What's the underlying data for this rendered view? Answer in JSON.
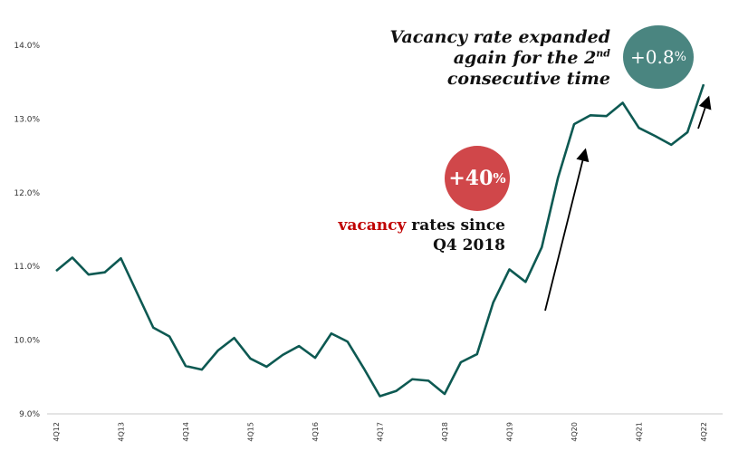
{
  "chart_data": {
    "type": "line",
    "title": "",
    "xlabel": "",
    "ylabel": "",
    "ylim": [
      9.0,
      14.0
    ],
    "yticks": [
      "9.0%",
      "10.0%",
      "11.0%",
      "12.0%",
      "13.0%",
      "14.0%"
    ],
    "xtick_labels": [
      "4Q12",
      "4Q13",
      "4Q14",
      "4Q15",
      "4Q16",
      "4Q17",
      "4Q18",
      "4Q19",
      "4Q20",
      "4Q21",
      "4Q22"
    ],
    "series": [
      {
        "name": "Vacancy rate",
        "color": "#0d5952",
        "values": [
          10.94,
          11.12,
          10.89,
          10.92,
          11.11,
          10.64,
          10.17,
          10.05,
          9.65,
          9.6,
          9.86,
          10.03,
          9.75,
          9.64,
          9.8,
          9.92,
          9.76,
          10.09,
          9.98,
          9.62,
          9.24,
          9.31,
          9.47,
          9.45,
          9.27,
          9.7,
          9.81,
          10.51,
          10.96,
          10.79,
          11.26,
          12.2,
          12.93,
          13.05,
          13.04,
          13.22,
          12.88,
          12.77,
          12.65,
          12.82,
          13.47
        ]
      }
    ],
    "grid": false,
    "annotations": {
      "top_text_line1": "Vacancy rate expanded",
      "top_text_line2": "again for the 2",
      "top_text_sup": "nd",
      "top_text_line3": "consecutive time",
      "top_badge_num": "+0.8",
      "top_badge_pct": "%",
      "mid_badge_num": "+40",
      "mid_badge_pct": "%",
      "mid_text_red": "vacancy",
      "mid_text_rest": " rates since",
      "mid_text_line2": "Q4 2018"
    }
  }
}
